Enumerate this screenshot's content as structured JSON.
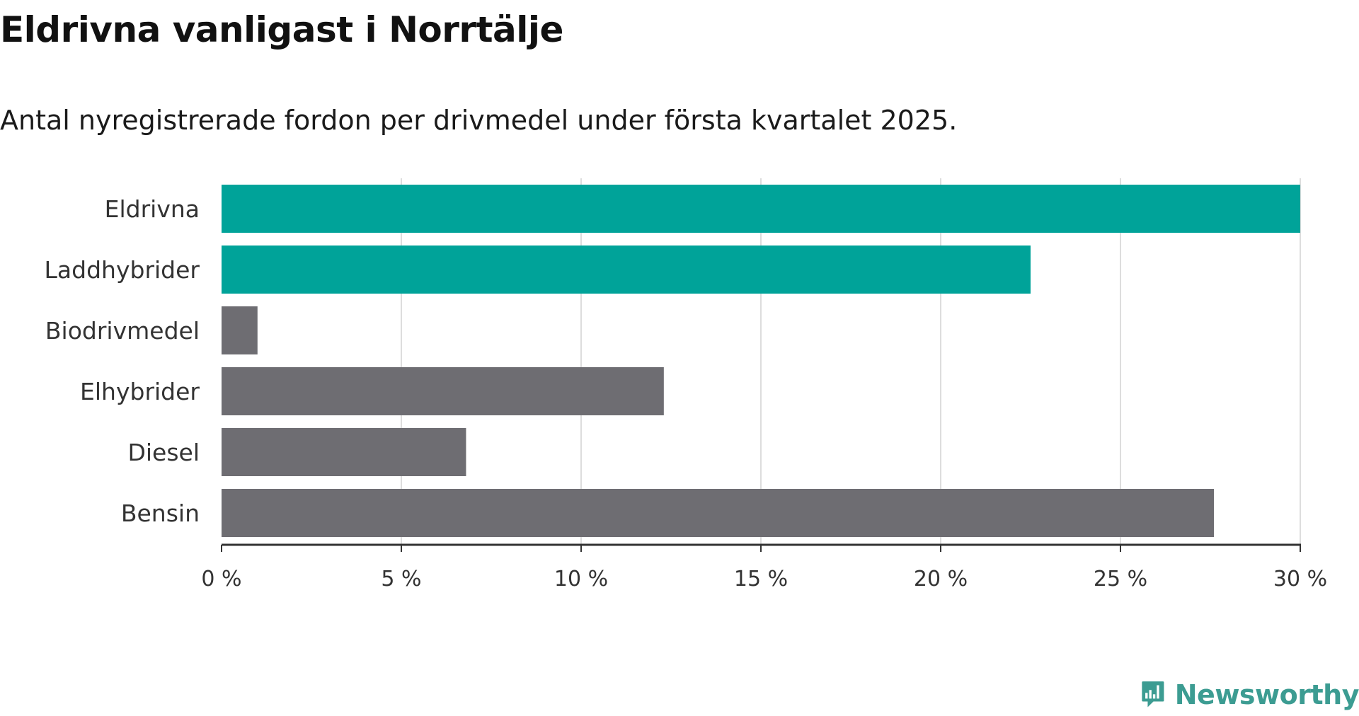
{
  "chart_data": {
    "type": "bar",
    "orientation": "horizontal",
    "title": "Eldrivna vanligast i Norrtälje",
    "subtitle": "Antal nyregistrerade fordon per drivmedel under första kvartalet 2025.",
    "categories": [
      "Eldrivna",
      "Laddhybrider",
      "Biodrivmedel",
      "Elhybrider",
      "Diesel",
      "Bensin"
    ],
    "values": [
      30.0,
      22.5,
      1.0,
      12.3,
      6.8,
      27.6
    ],
    "highlighted": [
      true,
      true,
      false,
      false,
      false,
      false
    ],
    "colors": {
      "highlight": "#00a399",
      "default": "#6e6d72",
      "grid": "#dddddd",
      "axis": "#333333",
      "tick_label": "#333333"
    },
    "xlim": [
      0,
      30
    ],
    "xticks": [
      0,
      5,
      10,
      15,
      20,
      25,
      30
    ],
    "xtick_labels": [
      "0 %",
      "5 %",
      "10 %",
      "15 %",
      "20 %",
      "25 %",
      "30 %"
    ],
    "xlabel": "",
    "ylabel": "",
    "grid": "vertical",
    "legend": "none"
  },
  "branding": {
    "logo_icon": "newsworthy-bar-chart-speech-bubble-icon",
    "name": "Newsworthy",
    "color": "#3c9c92"
  }
}
